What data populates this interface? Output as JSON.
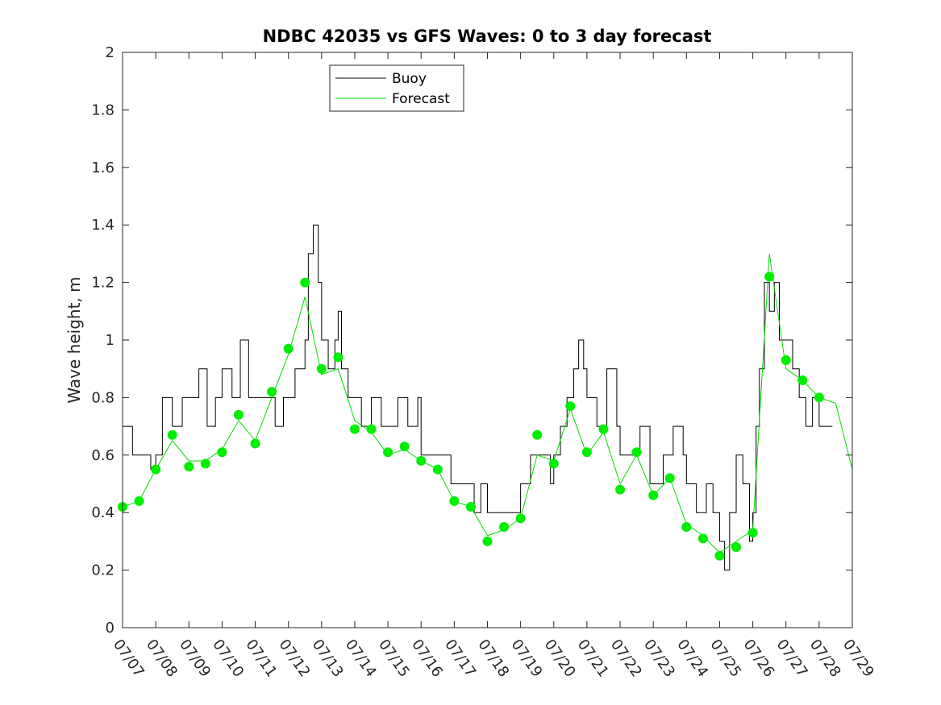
{
  "chart_data": {
    "type": "line",
    "title": "NDBC 42035 vs GFS Waves: 0 to 3 day forecast",
    "xlabel": "",
    "ylabel": "Wave height, m",
    "ylim": [
      0,
      2
    ],
    "yticks": [
      "0",
      "0.2",
      "0.4",
      "0.6",
      "0.8",
      "1",
      "1.2",
      "1.4",
      "1.6",
      "1.8",
      "2"
    ],
    "xlim_days": [
      7,
      29
    ],
    "xtick_labels": [
      "07/07",
      "07/08",
      "07/09",
      "07/10",
      "07/11",
      "07/12",
      "07/13",
      "07/14",
      "07/15",
      "07/16",
      "07/17",
      "07/18",
      "07/19",
      "07/20",
      "07/21",
      "07/22",
      "07/23",
      "07/24",
      "07/25",
      "07/26",
      "07/27",
      "07/28",
      "07/29"
    ],
    "grid": false,
    "legend_position": "top-left",
    "colors": {
      "buoy": "#000000",
      "forecast": "#00dd00",
      "marker": "#00ee00"
    },
    "series": [
      {
        "name": "Buoy",
        "kind": "step",
        "x_days": [
          7.0,
          7.3,
          7.6,
          7.85,
          8.0,
          8.2,
          8.5,
          8.8,
          9.0,
          9.3,
          9.55,
          9.8,
          10.0,
          10.3,
          10.55,
          10.8,
          11.0,
          11.3,
          11.6,
          11.85,
          12.0,
          12.2,
          12.4,
          12.5,
          12.6,
          12.75,
          12.9,
          13.0,
          13.2,
          13.4,
          13.5,
          13.6,
          13.8,
          14.0,
          14.2,
          14.5,
          14.8,
          15.0,
          15.3,
          15.6,
          15.9,
          16.0,
          16.3,
          16.6,
          16.9,
          17.0,
          17.3,
          17.6,
          17.8,
          18.0,
          18.3,
          18.6,
          18.9,
          19.0,
          19.3,
          19.6,
          19.9,
          20.0,
          20.2,
          20.4,
          20.6,
          20.75,
          20.9,
          21.0,
          21.3,
          21.6,
          21.9,
          22.0,
          22.3,
          22.6,
          22.9,
          23.0,
          23.3,
          23.6,
          23.9,
          24.0,
          24.3,
          24.6,
          24.8,
          25.0,
          25.15,
          25.3,
          25.5,
          25.7,
          25.9,
          26.0,
          26.1,
          26.2,
          26.35,
          26.5,
          26.65,
          26.8,
          27.0,
          27.2,
          27.4,
          27.6,
          27.8,
          28.0,
          28.2
        ],
        "y": [
          0.7,
          0.6,
          0.6,
          0.55,
          0.6,
          0.8,
          0.7,
          0.8,
          0.8,
          0.9,
          0.7,
          0.8,
          0.9,
          0.8,
          1.0,
          0.8,
          0.8,
          0.8,
          0.7,
          0.8,
          0.8,
          0.9,
          0.9,
          1.0,
          1.3,
          1.4,
          1.2,
          1.0,
          0.9,
          1.0,
          1.1,
          0.9,
          0.8,
          0.8,
          0.7,
          0.8,
          0.7,
          0.7,
          0.8,
          0.7,
          0.8,
          0.6,
          0.6,
          0.6,
          0.5,
          0.5,
          0.5,
          0.4,
          0.5,
          0.4,
          0.4,
          0.4,
          0.4,
          0.5,
          0.6,
          0.6,
          0.5,
          0.6,
          0.7,
          0.8,
          0.9,
          1.0,
          0.9,
          0.8,
          0.7,
          0.9,
          0.7,
          0.6,
          0.6,
          0.7,
          0.5,
          0.5,
          0.6,
          0.7,
          0.6,
          0.5,
          0.4,
          0.5,
          0.4,
          0.3,
          0.2,
          0.4,
          0.6,
          0.5,
          0.3,
          0.4,
          0.7,
          0.9,
          1.2,
          1.1,
          1.2,
          1.0,
          1.0,
          0.9,
          0.8,
          0.7,
          0.8,
          0.7,
          0.7
        ]
      },
      {
        "name": "Forecast",
        "kind": "line",
        "x_days": [
          7.0,
          7.5,
          8.0,
          8.5,
          9.0,
          9.5,
          10.0,
          10.5,
          11.0,
          11.5,
          12.0,
          12.5,
          13.0,
          13.5,
          14.0,
          14.5,
          15.0,
          15.5,
          16.0,
          16.5,
          17.0,
          17.5,
          18.0,
          18.5,
          19.0,
          19.5,
          20.0,
          20.5,
          21.0,
          21.5,
          22.0,
          22.5,
          23.0,
          23.5,
          24.0,
          24.5,
          25.0,
          25.5,
          26.0,
          26.5,
          27.0,
          27.5,
          28.0,
          28.5,
          29.0
        ],
        "y": [
          0.42,
          0.44,
          0.55,
          0.65,
          0.58,
          0.58,
          0.62,
          0.72,
          0.65,
          0.8,
          0.95,
          1.15,
          0.88,
          0.9,
          0.72,
          0.68,
          0.6,
          0.62,
          0.58,
          0.55,
          0.44,
          0.42,
          0.32,
          0.34,
          0.38,
          0.6,
          0.58,
          0.76,
          0.6,
          0.68,
          0.5,
          0.6,
          0.46,
          0.52,
          0.36,
          0.32,
          0.26,
          0.3,
          0.34,
          1.3,
          0.9,
          0.86,
          0.8,
          0.78,
          0.55
        ]
      }
    ],
    "markers": {
      "x_days": [
        7.0,
        7.5,
        8.0,
        8.5,
        9.0,
        9.5,
        10.0,
        10.5,
        11.0,
        11.5,
        12.0,
        12.5,
        13.0,
        13.5,
        14.0,
        14.5,
        15.0,
        15.5,
        16.0,
        16.5,
        17.0,
        17.5,
        18.0,
        18.5,
        19.0,
        19.5,
        20.0,
        20.5,
        21.0,
        21.5,
        22.0,
        22.5,
        23.0,
        23.5,
        24.0,
        24.5,
        25.0,
        25.5,
        26.0,
        26.5,
        27.0,
        27.5,
        28.0
      ],
      "y": [
        0.42,
        0.44,
        0.55,
        0.67,
        0.56,
        0.57,
        0.61,
        0.74,
        0.64,
        0.82,
        0.97,
        1.2,
        0.9,
        0.94,
        0.69,
        0.69,
        0.61,
        0.63,
        0.58,
        0.55,
        0.44,
        0.42,
        0.3,
        0.35,
        0.38,
        0.67,
        0.57,
        0.77,
        0.61,
        0.69,
        0.48,
        0.61,
        0.46,
        0.52,
        0.35,
        0.31,
        0.25,
        0.28,
        0.33,
        1.22,
        0.93,
        0.86,
        0.8
      ]
    }
  }
}
